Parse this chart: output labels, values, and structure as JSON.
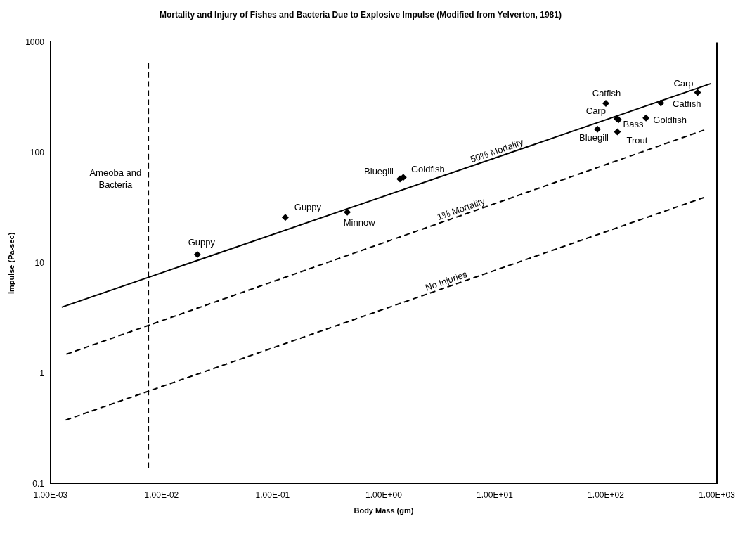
{
  "chart_data": {
    "type": "scatter",
    "title": "Mortality and Injury of Fishes and Bacteria Due to Explosive Impulse (Modified from Yelverton, 1981)",
    "xlabel": "Body Mass (gm)",
    "ylabel": "Impulse (Pa-sec)",
    "log": "xy",
    "grid": false,
    "legend": false,
    "marker": "diamond",
    "xlim": [
      0.001,
      1000
    ],
    "xticks": [
      {
        "value": 0.001,
        "label": "1.00E-03"
      },
      {
        "value": 0.01,
        "label": "1.00E-02"
      },
      {
        "value": 0.1,
        "label": "1.00E-01"
      },
      {
        "value": 1,
        "label": "1.00E+00"
      },
      {
        "value": 10,
        "label": "1.00E+01"
      },
      {
        "value": 100,
        "label": "1.00E+02"
      },
      {
        "value": 1000,
        "label": "1.00E+03"
      }
    ],
    "ylim": [
      0.1,
      1000
    ],
    "yticks": [
      0.1,
      1,
      10,
      100,
      1000
    ],
    "series": [
      {
        "type": "scatter",
        "color": "#000000",
        "x": [
          0.021,
          0.13,
          0.47,
          1.4,
          1.5,
          100,
          126,
          130,
          84,
          127,
          230,
          313,
          670
        ],
        "values": [
          12,
          26,
          29,
          58,
          60,
          281,
          204,
          200,
          164,
          155,
          207,
          283,
          352
        ]
      },
      {
        "type": "line",
        "color": "#000000",
        "line_style": "solid",
        "marker": "none",
        "x": [
          0.00126,
          883
        ],
        "values": [
          4,
          424
        ]
      },
      {
        "type": "line",
        "color": "#000000",
        "line_style": "dashed",
        "marker": "none",
        "x": [
          0.00139,
          769
        ],
        "values": [
          1.5,
          161
        ]
      },
      {
        "type": "line",
        "color": "#000000",
        "line_style": "dashed",
        "marker": "none",
        "x": [
          0.00137,
          769
        ],
        "values": [
          0.38,
          39.5
        ]
      },
      {
        "type": "line",
        "color": "#000000",
        "line_style": "dashed",
        "marker": "none",
        "x": [
          0.0076,
          0.0076
        ],
        "values": [
          0.14,
          650
        ]
      }
    ],
    "annotations": [
      "Ameoba and Bacteria",
      {
        "text": "Guppy",
        "x": 0.021,
        "y": 12
      },
      {
        "text": "Guppy",
        "x": 0.13,
        "y": 26
      },
      {
        "text": "Minnow",
        "x": 0.47,
        "y": 29
      },
      {
        "text": "Bluegill",
        "x": 1.4,
        "y": 58
      },
      {
        "text": "Goldfish",
        "x": 1.5,
        "y": 60
      },
      {
        "text": "Catfish",
        "x": 100,
        "y": 281
      },
      {
        "text": "Carp",
        "x": 126,
        "y": 204
      },
      {
        "text": "Bass",
        "x": 130,
        "y": 200
      },
      {
        "text": "Bluegill",
        "x": 84,
        "y": 164
      },
      {
        "text": "Trout",
        "x": 127,
        "y": 155
      },
      {
        "text": "Goldfish",
        "x": 230,
        "y": 207
      },
      {
        "text": "Catfish",
        "x": 313,
        "y": 283
      },
      {
        "text": "Carp",
        "x": 670,
        "y": 352
      },
      {
        "text": "50% Mortality",
        "x": 10,
        "y": 90
      },
      {
        "text": "1% Mortality",
        "x": 4.75,
        "y": 26.7
      },
      {
        "text": "No Injuries",
        "x": 3.5,
        "y": 5.96
      }
    ]
  }
}
